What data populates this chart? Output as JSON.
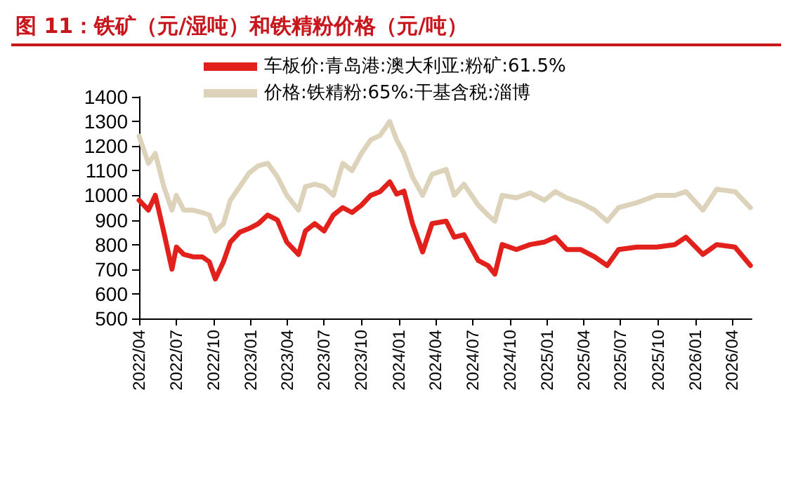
{
  "chart_data": {
    "type": "line",
    "title": "图 11：铁矿（元/湿吨）和铁精粉价格（元/吨）",
    "x": [
      "2022-04-01",
      "2022-04-24",
      "2022-05-11",
      "2022-06-01",
      "2022-06-21",
      "2022-07-02",
      "2022-07-20",
      "2022-08-12",
      "2022-09-04",
      "2022-09-21",
      "2022-10-06",
      "2022-10-26",
      "2022-11-12",
      "2022-12-05",
      "2022-12-28",
      "2023-01-20",
      "2023-02-12",
      "2023-03-08",
      "2023-03-31",
      "2023-04-29",
      "2023-05-16",
      "2023-06-08",
      "2023-07-01",
      "2023-07-24",
      "2023-08-16",
      "2023-09-08",
      "2023-10-01",
      "2023-10-24",
      "2023-11-16",
      "2023-12-10",
      "2023-12-27",
      "2024-01-14",
      "2024-02-04",
      "2024-02-29",
      "2024-03-23",
      "2024-04-27",
      "2024-05-17",
      "2024-06-10",
      "2024-07-15",
      "2024-08-08",
      "2024-08-25",
      "2024-09-12",
      "2024-10-17",
      "2024-11-20",
      "2024-12-25",
      "2025-01-21",
      "2025-02-18",
      "2025-03-24",
      "2025-04-28",
      "2025-05-29",
      "2025-06-26",
      "2025-08-10",
      "2025-09-28",
      "2025-11-12",
      "2025-12-09",
      "2026-01-20",
      "2026-02-23",
      "2026-04-09",
      "2026-05-17"
    ],
    "series": [
      {
        "name": "车板价:青岛港:澳大利亚:粉矿:61.5%",
        "color": "#e3211c",
        "values": [
          980,
          940,
          1000,
          850,
          700,
          790,
          760,
          750,
          750,
          730,
          660,
          730,
          810,
          850,
          865,
          885,
          920,
          900,
          810,
          760,
          855,
          885,
          855,
          920,
          950,
          930,
          960,
          1000,
          1015,
          1055,
          1005,
          1017,
          885,
          770,
          885,
          895,
          830,
          840,
          735,
          715,
          680,
          800,
          780,
          800,
          810,
          830,
          780,
          780,
          750,
          715,
          780,
          790,
          790,
          800,
          830,
          760,
          800,
          790,
          715
        ]
      },
      {
        "name": "价格:铁精粉:65%:干基含税:淄博",
        "color": "#ddd3bb",
        "values": [
          1240,
          1130,
          1170,
          1035,
          940,
          1000,
          940,
          940,
          930,
          920,
          855,
          885,
          980,
          1035,
          1090,
          1120,
          1130,
          1075,
          1000,
          940,
          1035,
          1045,
          1035,
          1000,
          1130,
          1100,
          1170,
          1225,
          1243,
          1300,
          1225,
          1170,
          1075,
          1000,
          1085,
          1105,
          1000,
          1045,
          960,
          920,
          895,
          1000,
          990,
          1010,
          980,
          1015,
          990,
          970,
          940,
          895,
          950,
          970,
          1000,
          1000,
          1015,
          940,
          1025,
          1015,
          950
        ]
      }
    ],
    "xlim": [
      "2022-04-01",
      "2026-05-20"
    ],
    "xticks": [
      {
        "value": "2022-04",
        "label": "2022/04"
      },
      {
        "value": "2022-07",
        "label": "2022/07"
      },
      {
        "value": "2022-10",
        "label": "2022/10"
      },
      {
        "value": "2023-01",
        "label": "2023/01"
      },
      {
        "value": "2023-04",
        "label": "2023/04"
      },
      {
        "value": "2023-07",
        "label": "2023/07"
      },
      {
        "value": "2023-10",
        "label": "2023/10"
      },
      {
        "value": "2024-01",
        "label": "2024/01"
      },
      {
        "value": "2024-04",
        "label": "2024/04"
      },
      {
        "value": "2024-07",
        "label": "2024/07"
      },
      {
        "value": "2024-10",
        "label": "2024/10"
      },
      {
        "value": "2025-01",
        "label": "2025/01"
      },
      {
        "value": "2025-04",
        "label": "2025/04"
      },
      {
        "value": "2025-07",
        "label": "2025/07"
      },
      {
        "value": "2025-10",
        "label": "2025/10"
      },
      {
        "value": "2026-01",
        "label": "2026/01"
      },
      {
        "value": "2026-04",
        "label": "2026/04"
      }
    ],
    "ylim": [
      500,
      1400
    ],
    "yticks": [
      500,
      600,
      700,
      800,
      900,
      1000,
      1100,
      1200,
      1300,
      1400
    ],
    "grid": false,
    "legend": "top",
    "marker": "none",
    "line_style": "solid"
  }
}
